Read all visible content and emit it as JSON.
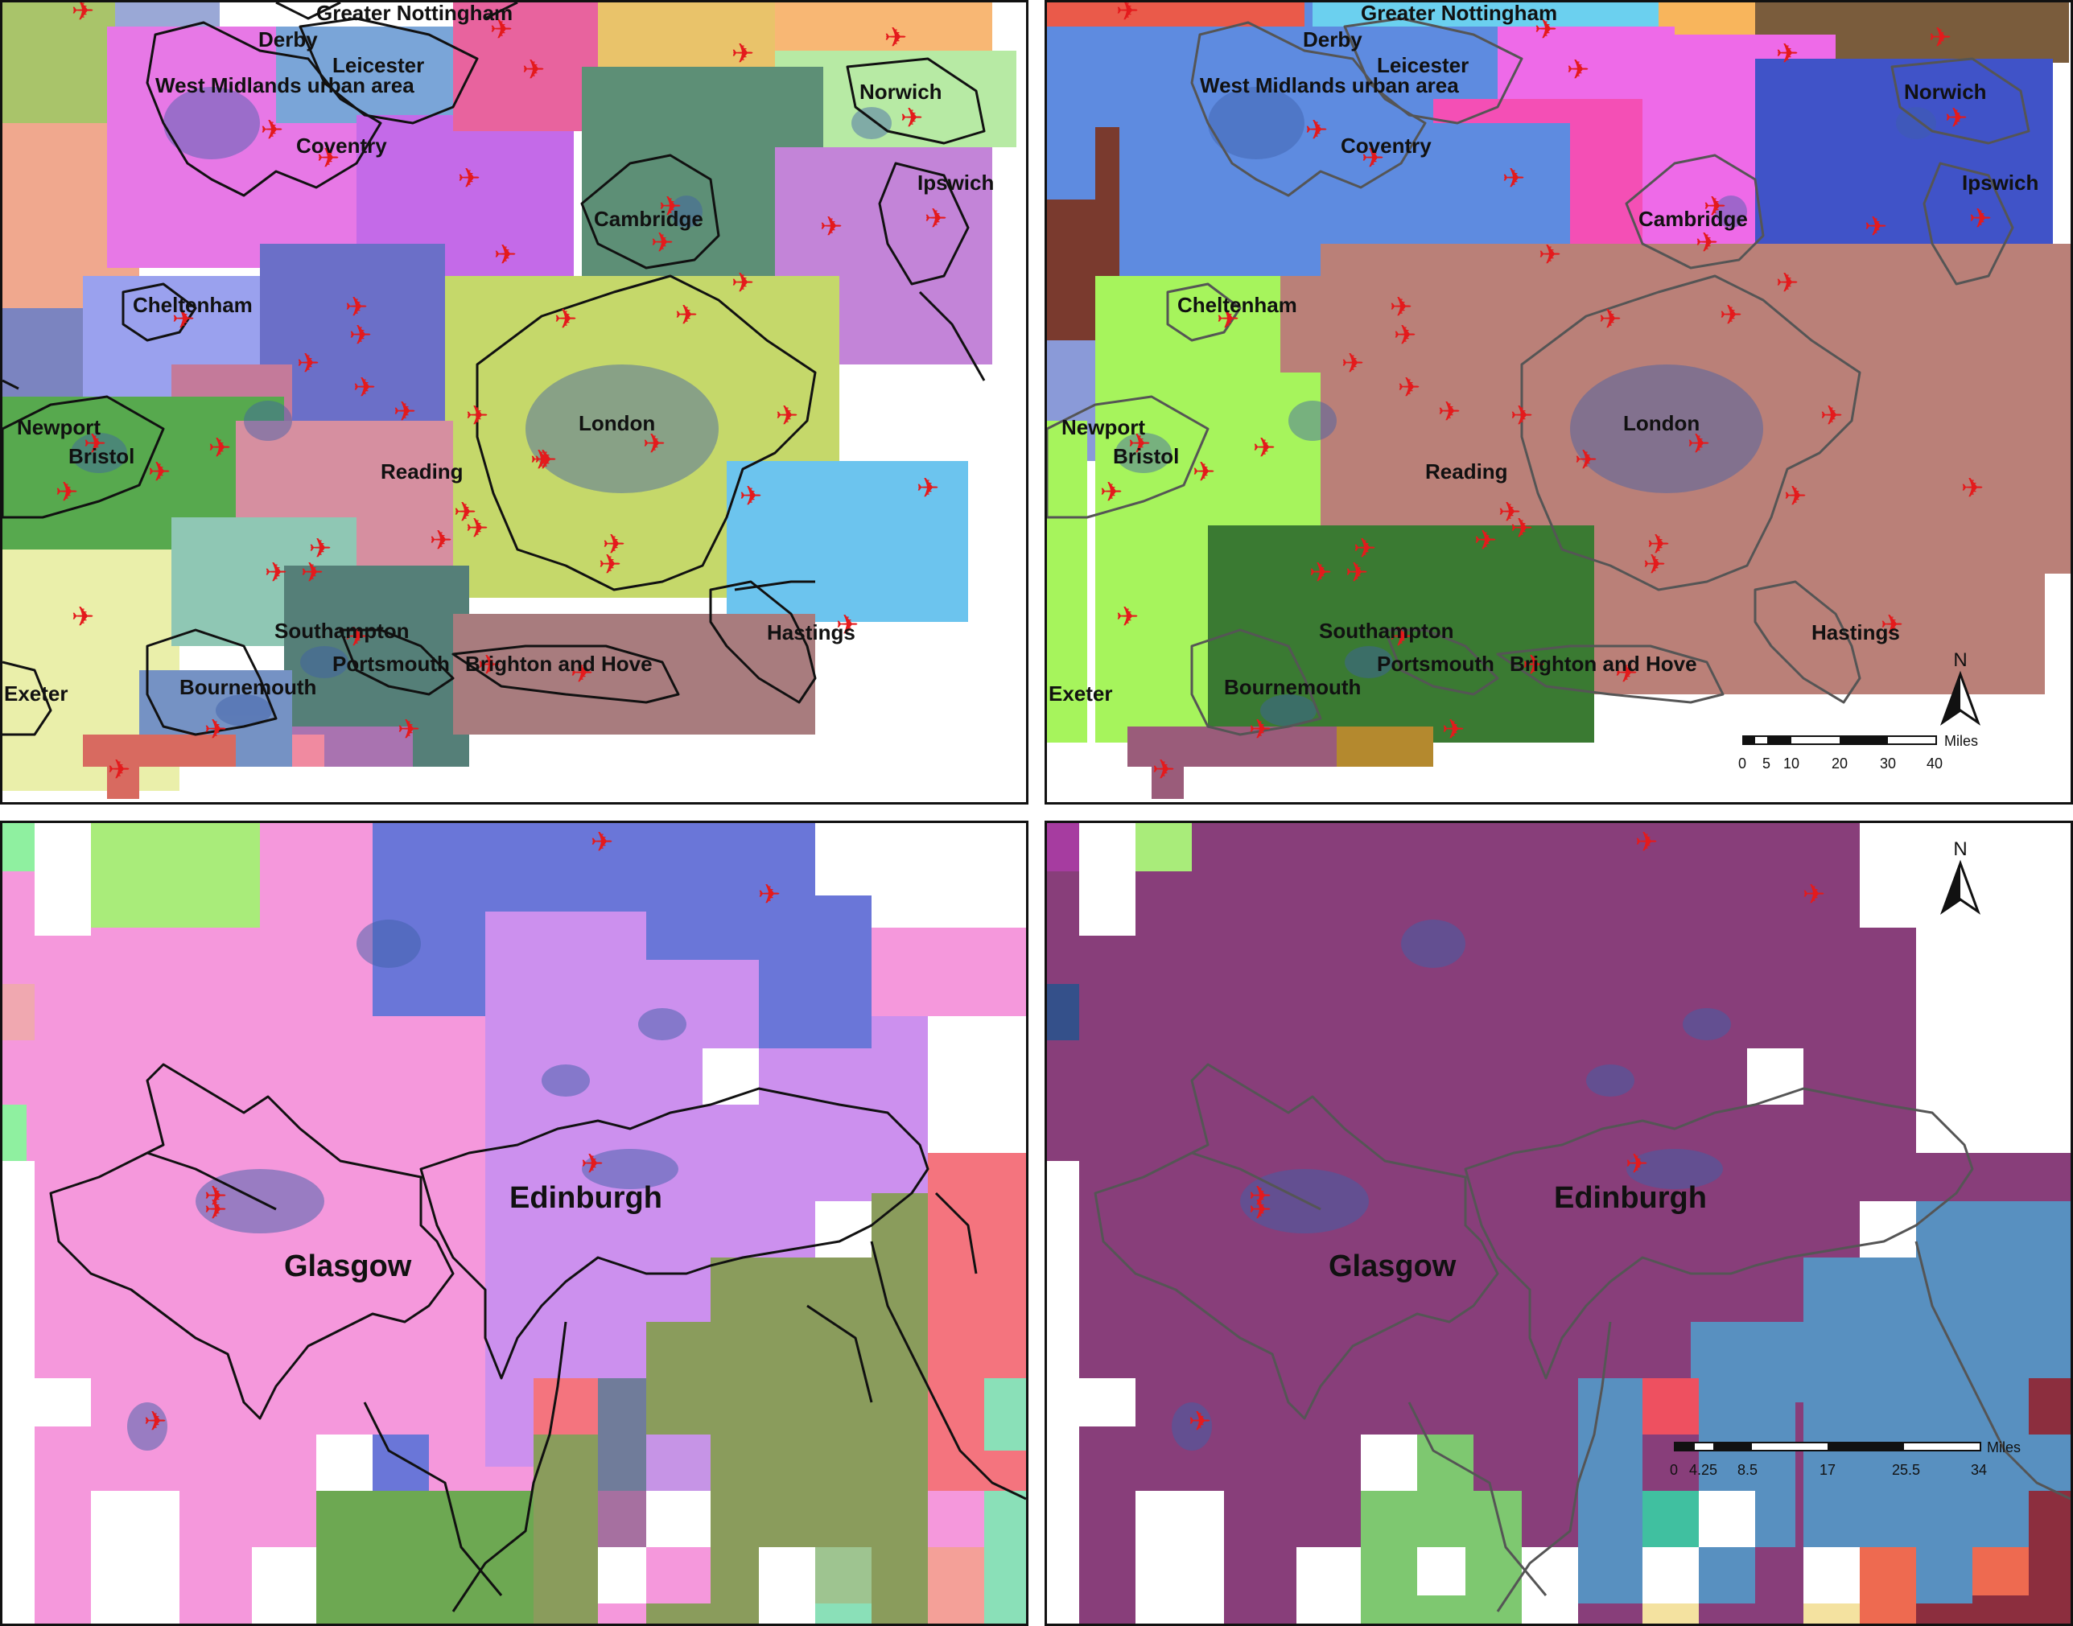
{
  "panels": {
    "top_left": {
      "cities": [
        "Greater Nottingham",
        "Derby",
        "Leicester",
        "West Midlands urban area",
        "Coventry",
        "Norwich",
        "Ipswich",
        "Cambridge",
        "Cheltenham",
        "Newport",
        "Bristol",
        "London",
        "Reading",
        "Southampton",
        "Portsmouth",
        "Brighton and Hove",
        "Hastings",
        "Bournemouth",
        "Exeter"
      ]
    },
    "top_right": {
      "cities": [
        "Greater Nottingham",
        "Derby",
        "Leicester",
        "West Midlands urban area",
        "Coventry",
        "Norwich",
        "Ipswich",
        "Cambridge",
        "Cheltenham",
        "Newport",
        "Bristol",
        "London",
        "Reading",
        "Southampton",
        "Portsmouth",
        "Brighton and Hove",
        "Hastings",
        "Bournemouth",
        "Exeter"
      ],
      "north": "N",
      "scale": {
        "unit": "Miles",
        "ticks": [
          "0",
          "5",
          "10",
          "20",
          "30",
          "40"
        ]
      }
    },
    "bottom_left": {
      "cities": [
        "Edinburgh",
        "Glasgow"
      ]
    },
    "bottom_right": {
      "cities": [
        "Edinburgh",
        "Glasgow"
      ],
      "north": "N",
      "scale": {
        "unit": "Miles",
        "ticks": [
          "0",
          "4.25",
          "8.5",
          "17",
          "25.5",
          "34"
        ]
      }
    }
  },
  "colors": {
    "airport": "#e41a1c",
    "dots": "#3d5fa8",
    "boundary": "#111111"
  },
  "icons": [
    "airport-icon",
    "north-arrow-icon",
    "scale-bar"
  ]
}
